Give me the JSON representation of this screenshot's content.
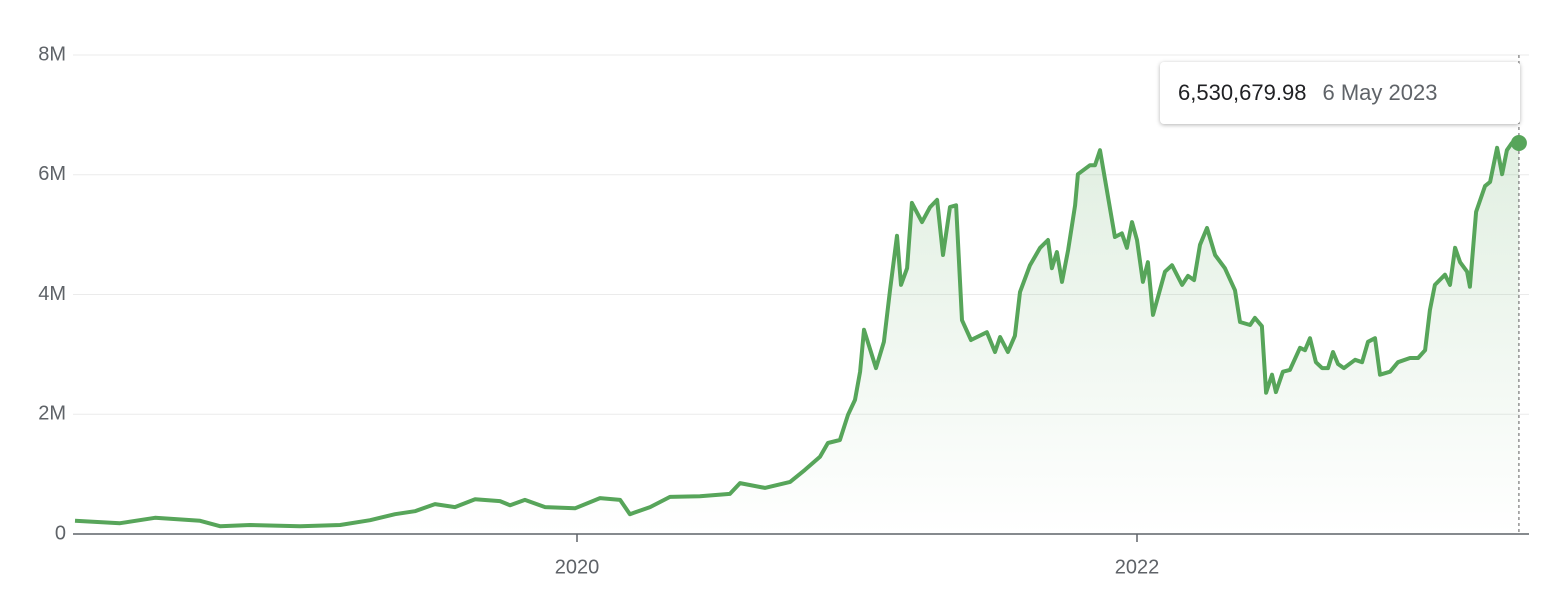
{
  "chart_data": {
    "type": "area-line",
    "x": [
      2018.207,
      2018.368,
      2018.493,
      2018.654,
      2018.725,
      2018.832,
      2019.011,
      2019.154,
      2019.261,
      2019.35,
      2019.421,
      2019.493,
      2019.564,
      2019.636,
      2019.725,
      2019.761,
      2019.814,
      2019.886,
      2019.993,
      2020.082,
      2020.154,
      2020.189,
      2020.261,
      2020.332,
      2020.439,
      2020.546,
      2020.582,
      2020.671,
      2020.761,
      2020.814,
      2020.868,
      2020.896,
      2020.939,
      2020.968,
      2020.993,
      2021.011,
      2021.025,
      2021.068,
      2021.096,
      2021.118,
      2021.143,
      2021.157,
      2021.179,
      2021.196,
      2021.232,
      2021.261,
      2021.286,
      2021.307,
      2021.332,
      2021.354,
      2021.375,
      2021.407,
      2021.464,
      2021.493,
      2021.511,
      2021.539,
      2021.564,
      2021.582,
      2021.618,
      2021.654,
      2021.682,
      2021.696,
      2021.714,
      2021.732,
      2021.754,
      2021.779,
      2021.789,
      2021.832,
      2021.85,
      2021.868,
      2021.921,
      2021.946,
      2021.964,
      2021.982,
      2022.0,
      2022.021,
      2022.039,
      2022.057,
      2022.1,
      2022.125,
      2022.161,
      2022.182,
      2022.204,
      2022.225,
      2022.25,
      2022.279,
      2022.314,
      2022.35,
      2022.368,
      2022.404,
      2022.421,
      2022.446,
      2022.461,
      2022.482,
      2022.496,
      2022.521,
      2022.546,
      2022.582,
      2022.6,
      2022.618,
      2022.639,
      2022.661,
      2022.682,
      2022.7,
      2022.718,
      2022.739,
      2022.779,
      2022.804,
      2022.825,
      2022.85,
      2022.868,
      2022.904,
      2022.932,
      2022.975,
      2023.004,
      2023.029,
      2023.046,
      2023.064,
      2023.1,
      2023.118,
      2023.136,
      2023.154,
      2023.179,
      2023.189,
      2023.211,
      2023.243,
      2023.261,
      2023.286,
      2023.304,
      2023.321,
      2023.339,
      2023.364
    ],
    "values": [
      220000,
      180000,
      270000,
      220000,
      130000,
      150000,
      130000,
      150000,
      230000,
      330000,
      380000,
      500000,
      450000,
      580000,
      550000,
      480000,
      570000,
      450000,
      430000,
      600000,
      570000,
      330000,
      450000,
      620000,
      630000,
      670000,
      850000,
      770000,
      870000,
      1070000,
      1290000,
      1520000,
      1570000,
      1990000,
      2240000,
      2710000,
      3410000,
      2770000,
      3210000,
      4070000,
      4980000,
      4160000,
      4440000,
      5530000,
      5210000,
      5460000,
      5580000,
      4660000,
      5460000,
      5490000,
      3570000,
      3240000,
      3370000,
      3040000,
      3290000,
      3040000,
      3310000,
      4040000,
      4490000,
      4780000,
      4910000,
      4440000,
      4710000,
      4210000,
      4740000,
      5490000,
      6010000,
      6160000,
      6160000,
      6410000,
      4960000,
      5020000,
      4780000,
      5210000,
      4910000,
      4210000,
      4540000,
      3660000,
      4380000,
      4490000,
      4160000,
      4310000,
      4240000,
      4830000,
      5110000,
      4660000,
      4440000,
      4070000,
      3540000,
      3490000,
      3610000,
      3470000,
      2360000,
      2660000,
      2370000,
      2710000,
      2740000,
      3110000,
      3070000,
      3270000,
      2870000,
      2770000,
      2770000,
      3040000,
      2840000,
      2770000,
      2910000,
      2870000,
      3210000,
      3270000,
      2660000,
      2710000,
      2870000,
      2940000,
      2940000,
      3070000,
      3740000,
      4160000,
      4330000,
      4160000,
      4780000,
      4540000,
      4380000,
      4130000,
      5380000,
      5810000,
      5880000,
      6450000,
      6010000,
      6410000,
      6530000,
      6530679.98
    ],
    "color": "#57a55a",
    "xlim": [
      2018.2,
      2023.4
    ],
    "xticks": [
      2020,
      2022
    ],
    "ylim": [
      0,
      8000000
    ],
    "yticks": [
      0,
      {
        "value": 2000000,
        "label": "2M"
      },
      {
        "value": 4000000,
        "label": "4M"
      },
      {
        "value": 6000000,
        "label": "6M"
      },
      {
        "value": 8000000,
        "label": "8M"
      }
    ],
    "grid": true,
    "tooltip": {
      "value": 6530679.98,
      "label": "6,530,679.98",
      "date": "6 May 2023"
    }
  }
}
